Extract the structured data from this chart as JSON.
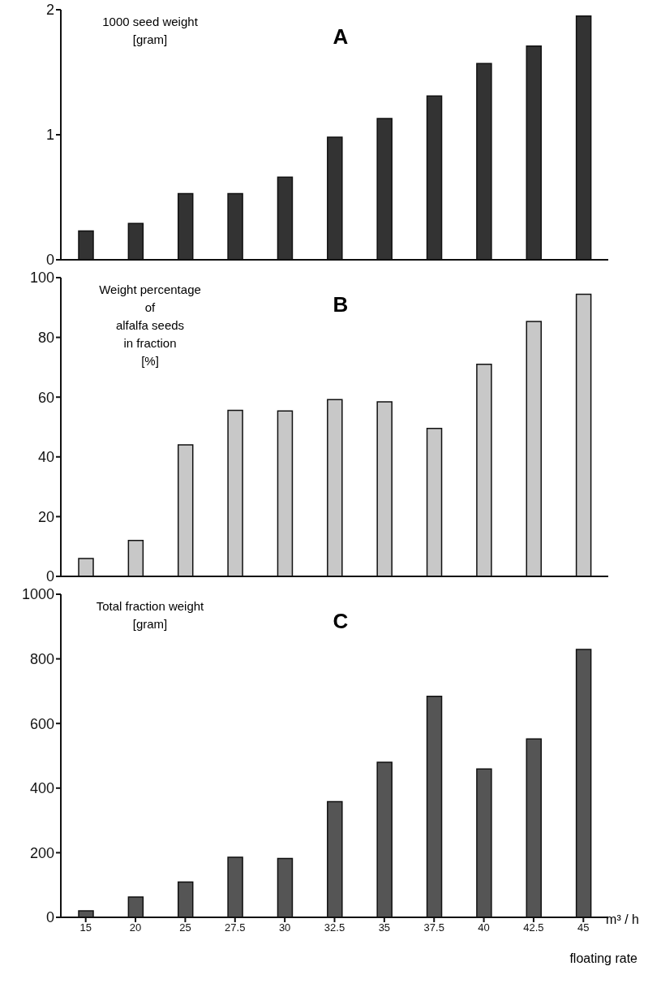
{
  "chart_data": [
    {
      "type": "bar",
      "title": "A",
      "ylabel": "1000 seed weight\n[gram]",
      "categories": [
        "15",
        "20",
        "25",
        "27.5",
        "30",
        "32.5",
        "35",
        "37.5",
        "40",
        "42.5",
        "45"
      ],
      "values": [
        0.23,
        0.29,
        0.53,
        0.53,
        0.66,
        0.98,
        1.13,
        1.31,
        1.57,
        1.71,
        1.95
      ],
      "color": "#333333",
      "ylim": [
        0,
        2
      ],
      "yticks": [
        0,
        1,
        2
      ],
      "tick_labels": "y"
    },
    {
      "type": "bar",
      "title": "B",
      "ylabel": "Weight percentage\nof\nalfalfa seeds\nin fraction\n[%]",
      "categories": [
        "15",
        "20",
        "25",
        "27.5",
        "30",
        "32.5",
        "35",
        "37.5",
        "40",
        "42.5",
        "45"
      ],
      "values": [
        6,
        12,
        44,
        55.6,
        55.4,
        59.2,
        58.4,
        49.5,
        71,
        85.3,
        94.4
      ],
      "color": "#c8c8c8",
      "ylim": [
        0,
        100
      ],
      "yticks": [
        0,
        20,
        40,
        60,
        80,
        100
      ],
      "tick_labels": "y"
    },
    {
      "type": "bar",
      "title": "C",
      "ylabel": "Total fraction weight\n[gram]",
      "xlabel": "floating rate",
      "annotations": [
        "m³ / h"
      ],
      "categories": [
        "15",
        "20",
        "25",
        "27.5",
        "30",
        "32.5",
        "35",
        "37.5",
        "40",
        "42.5",
        "45"
      ],
      "values": [
        20,
        63,
        109,
        186,
        182,
        358,
        480,
        684,
        459,
        552,
        829
      ],
      "color": "#555555",
      "ylim": [
        0,
        1000
      ],
      "yticks": [
        0,
        200,
        400,
        600,
        800,
        1000
      ]
    }
  ]
}
